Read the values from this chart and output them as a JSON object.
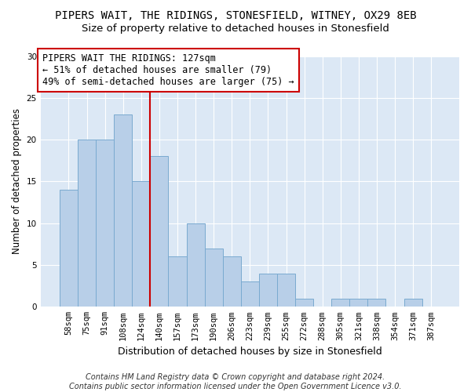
{
  "title": "PIPERS WAIT, THE RIDINGS, STONESFIELD, WITNEY, OX29 8EB",
  "subtitle": "Size of property relative to detached houses in Stonesfield",
  "xlabel": "Distribution of detached houses by size in Stonesfield",
  "ylabel": "Number of detached properties",
  "categories": [
    "58sqm",
    "75sqm",
    "91sqm",
    "108sqm",
    "124sqm",
    "140sqm",
    "157sqm",
    "173sqm",
    "190sqm",
    "206sqm",
    "223sqm",
    "239sqm",
    "255sqm",
    "272sqm",
    "288sqm",
    "305sqm",
    "321sqm",
    "338sqm",
    "354sqm",
    "371sqm",
    "387sqm"
  ],
  "values": [
    14,
    20,
    20,
    23,
    15,
    18,
    6,
    10,
    7,
    6,
    3,
    4,
    4,
    1,
    0,
    1,
    1,
    1,
    0,
    1,
    0
  ],
  "bar_color": "#b8cfe8",
  "bar_edge_color": "#7aaad0",
  "background_color": "#dce8f5",
  "annotation_text": "PIPERS WAIT THE RIDINGS: 127sqm\n← 51% of detached houses are smaller (79)\n49% of semi-detached houses are larger (75) →",
  "vline_x": 4.5,
  "vline_color": "#cc0000",
  "ylim": [
    0,
    30
  ],
  "yticks": [
    0,
    5,
    10,
    15,
    20,
    25,
    30
  ],
  "footnote": "Contains HM Land Registry data © Crown copyright and database right 2024.\nContains public sector information licensed under the Open Government Licence v3.0.",
  "title_fontsize": 10,
  "subtitle_fontsize": 9.5,
  "annotation_fontsize": 8.5,
  "ylabel_fontsize": 8.5,
  "xlabel_fontsize": 9,
  "tick_fontsize": 7.5,
  "footnote_fontsize": 7
}
